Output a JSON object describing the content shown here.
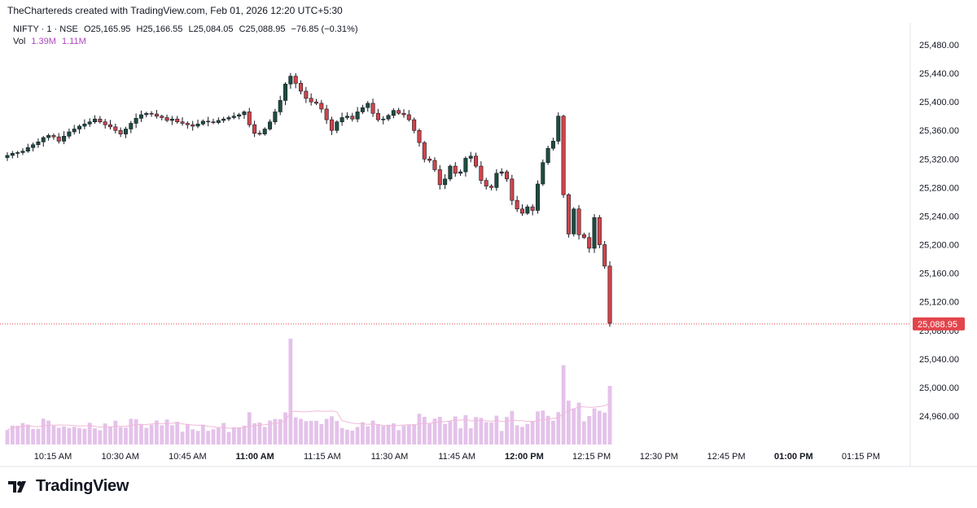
{
  "header": {
    "caption": "TheChartereds created with TradingView.com, Feb 01, 2026 12:20 UTC+5:30"
  },
  "legend": {
    "symbol": "NIFTY · 1 · NSE",
    "open": "O25,165.95",
    "high": "H25,166.55",
    "low": "L25,084.05",
    "close": "C25,088.95",
    "change": "−76.85 (−0.31%)",
    "vol_label": "Vol",
    "vol_value": "1.39M",
    "vol_ma": "1.11M"
  },
  "footer": {
    "brand": "TradingView"
  },
  "colors": {
    "up": "#1e4d3f",
    "down": "#d0444b",
    "volume": "#e4c2ea",
    "volume_ma": "#f2b8d8",
    "last_price": "#e3444c",
    "grid": "#e0e3eb"
  },
  "chart_data": {
    "type": "candlestick",
    "symbol": "NIFTY",
    "interval": "1",
    "exchange": "NSE",
    "y_ticks": [
      25480,
      25440,
      25400,
      25360,
      25320,
      25280,
      25240,
      25200,
      25160,
      25120,
      25080,
      25040,
      25000,
      24960
    ],
    "y_tick_labels": [
      "25,480.00",
      "25,440.00",
      "25,400.00",
      "25,360.00",
      "25,320.00",
      "25,280.00",
      "25,240.00",
      "25,200.00",
      "25,160.00",
      "25,120.00",
      "25,080.00",
      "25,040.00",
      "25,000.00",
      "24,960.00"
    ],
    "ylim": [
      24935,
      25500
    ],
    "x_ticks": [
      "10:15 AM",
      "10:30 AM",
      "10:45 AM",
      "11:00 AM",
      "11:15 AM",
      "11:30 AM",
      "11:45 AM",
      "12:00 PM",
      "12:15 PM",
      "12:30 PM",
      "12:45 PM",
      "01:00 PM",
      "01:15 PM"
    ],
    "x_tick_bold": [
      "11:00 AM",
      "12:00 PM",
      "01:00 PM"
    ],
    "last_price": 25088.95,
    "last_price_label": "25,088.95",
    "closes": [
      25325,
      25328,
      25329,
      25331,
      25336,
      25340,
      25344,
      25350,
      25353,
      25351,
      25345,
      25352,
      25358,
      25362,
      25366,
      25369,
      25372,
      25376,
      25372,
      25368,
      25365,
      25360,
      25355,
      25362,
      25370,
      25377,
      25382,
      25384,
      25383,
      25380,
      25378,
      25374,
      25376,
      25372,
      25370,
      25368,
      25366,
      25369,
      25373,
      25372,
      25371,
      25374,
      25376,
      25378,
      25380,
      25382,
      25386,
      25368,
      25356,
      25355,
      25362,
      25372,
      25386,
      25402,
      25425,
      25436,
      25426,
      25415,
      25405,
      25400,
      25398,
      25390,
      25375,
      25360,
      25372,
      25378,
      25380,
      25376,
      25386,
      25392,
      25398,
      25384,
      25375,
      25376,
      25381,
      25388,
      25384,
      25382,
      25375,
      25360,
      25343,
      25320,
      25318,
      25305,
      25284,
      25292,
      25310,
      25300,
      25302,
      25321,
      25324,
      25310,
      25290,
      25282,
      25280,
      25300,
      25302,
      25292,
      25262,
      25250,
      25244,
      25253,
      25248,
      25285,
      25315,
      25335,
      25345,
      25380,
      25270,
      25215,
      25250,
      25214,
      25210,
      25195,
      25238,
      25200,
      25170,
      25090
    ],
    "volume_note": "volume shown in histogram, bars relative"
  }
}
